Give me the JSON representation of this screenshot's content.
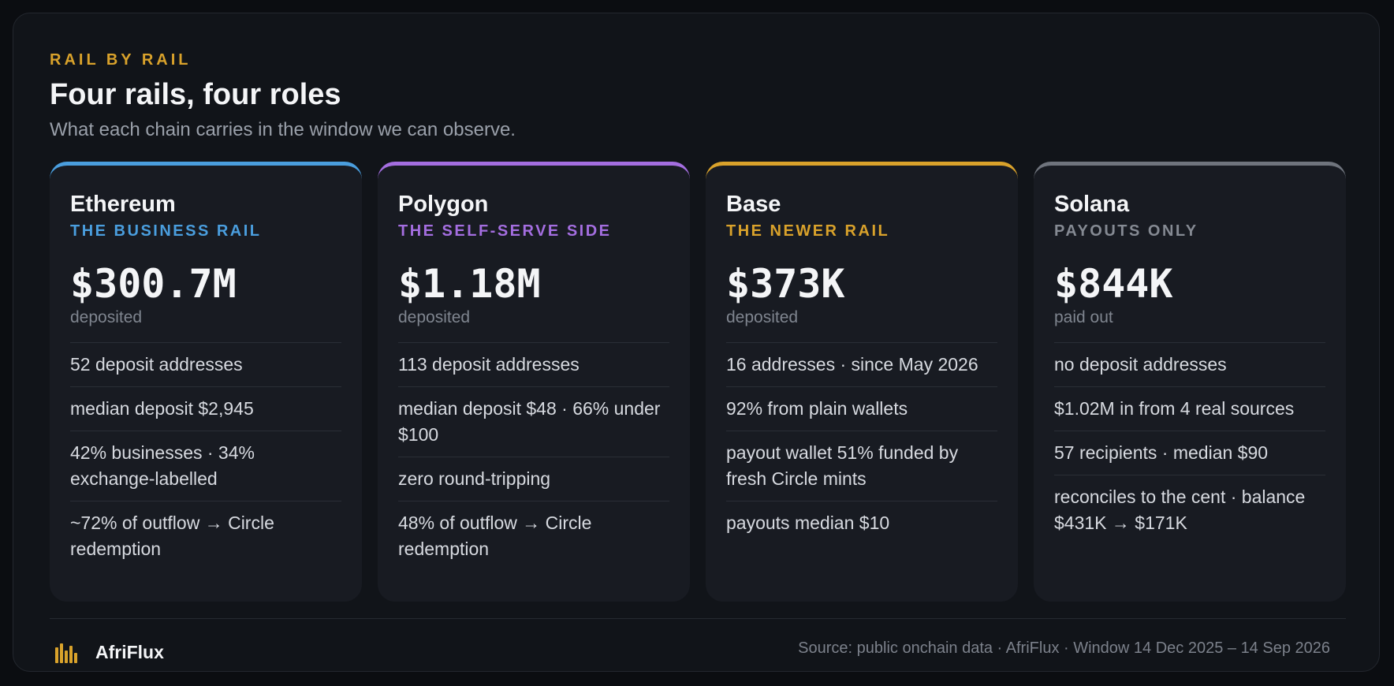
{
  "header": {
    "eyebrow": "RAIL BY RAIL",
    "title": "Four rails, four roles",
    "subtitle": "What each chain carries in the window we can observe."
  },
  "cards": [
    {
      "chain": "Ethereum",
      "role": "THE BUSINESS RAIL",
      "accent": "#4a9ede",
      "amount": "$300.7M",
      "amount_label": "deposited",
      "facts": [
        "52 deposit addresses",
        "median deposit $2,945",
        "42% businesses · 34% exchange-labelled",
        "~72% of outflow → Circle redemption"
      ]
    },
    {
      "chain": "Polygon",
      "role": "THE SELF-SERVE SIDE",
      "accent": "#a46ee0",
      "amount": "$1.18M",
      "amount_label": "deposited",
      "facts": [
        "113 deposit addresses",
        "median deposit $48 · 66% under $100",
        "zero round-tripping",
        "48% of outflow → Circle redemption"
      ]
    },
    {
      "chain": "Base",
      "role": "THE NEWER RAIL",
      "accent": "#d9a22b",
      "amount": "$373K",
      "amount_label": "deposited",
      "facts": [
        "16 addresses · since May 2026",
        "92% from plain wallets",
        "payout wallet 51% funded by fresh Circle mints",
        "payouts median $10"
      ]
    },
    {
      "chain": "Solana",
      "role": "PAYOUTS ONLY",
      "accent": "#6f747d",
      "amount": "$844K",
      "amount_label": "paid out",
      "facts": [
        "no deposit addresses",
        "$1.02M in from 4 real sources",
        "57 recipients · median $90",
        "reconciles to the cent · balance $431K → $171K"
      ]
    }
  ],
  "footer": {
    "brand_name": "AfriFlux",
    "brand_icon": "bar-chart-icon",
    "brand_color": "#d9a22b",
    "source": "Source: public onchain data · AfriFlux · Window 14 Dec 2025 – 14 Sep 2026"
  }
}
